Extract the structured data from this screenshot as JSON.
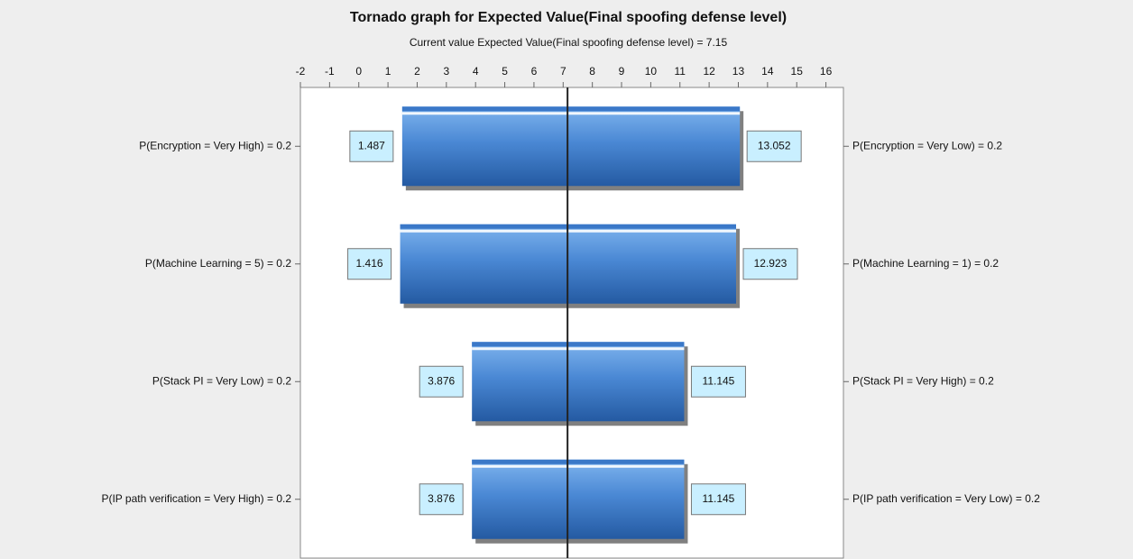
{
  "chart_data": {
    "type": "tornado",
    "title": "Tornado graph for Expected Value(Final spoofing defense level)",
    "subtitle": "Current value Expected Value(Final spoofing defense level) = 7.15",
    "base": 7.15,
    "categories": [
      "P(Encryption = Very High) = 0.2",
      "P(Machine Learning = 5) = 0.2",
      "P(Stack PI = Very Low) = 0.2",
      "P(IP path verification = Very High) = 0.2"
    ],
    "categories_right": [
      "P(Encryption = Very Low) = 0.2",
      "P(Machine Learning = 1) = 0.2",
      "P(Stack PI = Very High) = 0.2",
      "P(IP path verification = Very Low) = 0.2"
    ],
    "values_low": [
      1.487,
      1.416,
      3.876,
      3.876
    ],
    "values_high": [
      13.052,
      12.923,
      11.145,
      11.145
    ],
    "color": "#3a78c8",
    "xlim": [
      -2,
      16.6
    ],
    "xticks": [
      -2,
      -1,
      0,
      1,
      2,
      3,
      4,
      5,
      6,
      7,
      8,
      9,
      10,
      11,
      12,
      13,
      14,
      15,
      16
    ]
  }
}
